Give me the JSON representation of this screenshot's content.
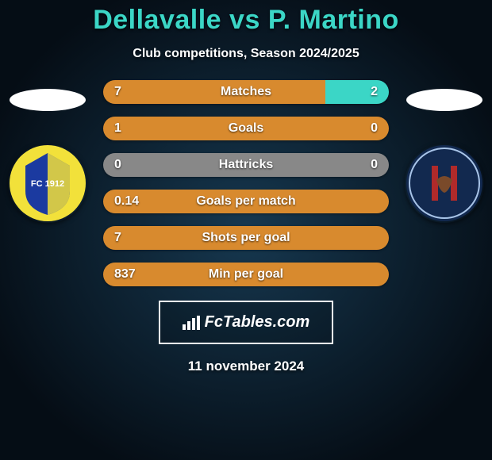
{
  "background_color": "#0a1a2a",
  "bg_gradient_center": "#163850",
  "bg_gradient_edge": "#050d15",
  "title": {
    "left_name": "Dellavalle",
    "vs": "vs",
    "right_name": "P. Martino",
    "color": "#3bd6c6",
    "fontsize": 34
  },
  "subtitle": {
    "text": "Club competitions, Season 2024/2025",
    "fontsize": 16
  },
  "left_club": {
    "name": "Modena FC 1912",
    "badge_bg": "#f2e13a",
    "badge_accent": "#1b3aa0",
    "badge_text": "FC 1912"
  },
  "right_club": {
    "name": "Cosenza Calcio",
    "badge_bg": "#12294f",
    "badge_accent": "#b02a2a",
    "badge_text": "COSENZA CALCIO"
  },
  "bars": {
    "left_color": "#d88a2e",
    "right_color": "#3bd6c6",
    "neutral_color": "#888888",
    "label_fontsize": 16,
    "value_fontsize": 16,
    "height": 30,
    "radius": 15,
    "items": [
      {
        "label": "Matches",
        "left": "7",
        "right": "2",
        "left_pct": 77.8,
        "right_pct": 22.2
      },
      {
        "label": "Goals",
        "left": "1",
        "right": "0",
        "left_pct": 100,
        "right_pct": 0
      },
      {
        "label": "Hattricks",
        "left": "0",
        "right": "0",
        "left_pct": 0,
        "right_pct": 0,
        "neutral": true
      },
      {
        "label": "Goals per match",
        "left": "0.14",
        "right": "",
        "left_pct": 100,
        "right_pct": 0
      },
      {
        "label": "Shots per goal",
        "left": "7",
        "right": "",
        "left_pct": 100,
        "right_pct": 0
      },
      {
        "label": "Min per goal",
        "left": "837",
        "right": "",
        "left_pct": 100,
        "right_pct": 0
      }
    ]
  },
  "brand": {
    "text": "FcTables.com",
    "fontsize": 20,
    "border_color": "#ffffff",
    "bg_color": "rgba(0,0,0,0.15)"
  },
  "footer": {
    "text": "11 november 2024",
    "fontsize": 17
  }
}
